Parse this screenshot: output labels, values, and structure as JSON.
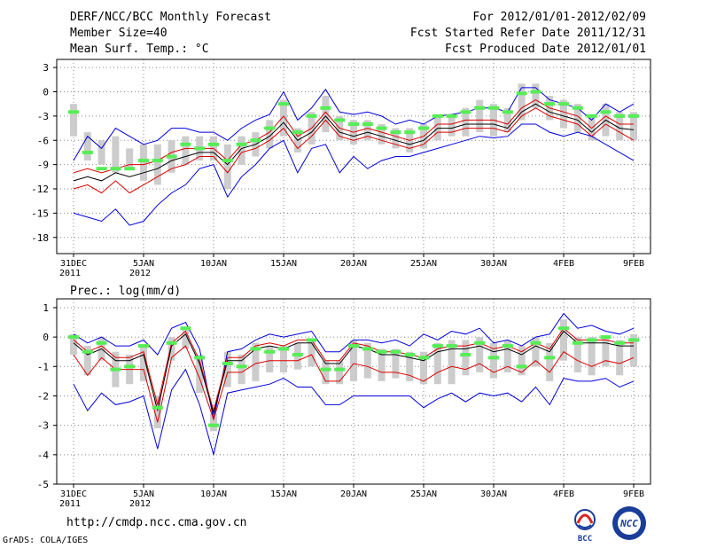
{
  "header": {
    "title": "DERF/NCC/BCC Monthly Forecast",
    "member_size": "Member Size=40",
    "variable": "Mean Surf. Temp.: °C",
    "forecast_for": "For 2012/01/01-2012/02/09",
    "started": "Fcst Started Refer Date 2011/12/31",
    "produced": "Fcst Produced Date 2012/01/01"
  },
  "footer": {
    "url": "http://cmdp.ncc.cma.gov.cn",
    "grads": "GrADS: COLA/IGES",
    "logo_bcc": "BCC",
    "logo_ncc": "NCC"
  },
  "colors": {
    "envelope": "#0000dd",
    "spread": "#dd0000",
    "mean": "#000000",
    "member": "#55ee55",
    "box": "#cccccc",
    "grid": "#888888"
  },
  "chart_data": [
    {
      "type": "line",
      "title": "Mean Surf. Temp.: °C",
      "ylim": [
        -20,
        4
      ],
      "yticks": [
        3,
        0,
        -3,
        -6,
        -9,
        -12,
        -15,
        -18
      ],
      "xlim": [
        0,
        40
      ],
      "xtick_pos": [
        0,
        5,
        10,
        15,
        20,
        25,
        30,
        35,
        40
      ],
      "xtick_labels": [
        "31DEC",
        "5JAN",
        "10JAN",
        "15JAN",
        "20JAN",
        "25JAN",
        "30JAN",
        "4FEB",
        "9FEB"
      ],
      "xtick_sublabels": [
        "2011",
        "2012",
        "",
        "",
        "",
        "",
        "",
        "",
        ""
      ],
      "x": [
        0,
        1,
        2,
        3,
        4,
        5,
        6,
        7,
        8,
        9,
        10,
        11,
        12,
        13,
        14,
        15,
        16,
        17,
        18,
        19,
        20,
        21,
        22,
        23,
        24,
        25,
        26,
        27,
        28,
        29,
        30,
        31,
        32,
        33,
        34,
        35,
        36,
        37,
        38,
        39,
        40
      ],
      "series": [
        {
          "name": "Max",
          "values": [
            -8.5,
            -5.5,
            -7,
            -4.5,
            -5.5,
            -6.5,
            -6,
            -4.5,
            -4.5,
            -5,
            -5,
            -6,
            -4.5,
            -3.5,
            -2.8,
            0,
            -3.5,
            -2,
            0.3,
            -2.5,
            -2.8,
            -2.5,
            -3,
            -4,
            -3.5,
            -4,
            -3,
            -2.8,
            -2.5,
            -2,
            -2,
            -2.5,
            0.5,
            0.5,
            -1,
            -1.5,
            -2,
            -3.5,
            -1.5,
            -2.5,
            -1.5
          ]
        },
        {
          "name": "Spread+",
          "values": [
            -10,
            -9.5,
            -10,
            -9.5,
            -9,
            -9,
            -8.5,
            -7.5,
            -7,
            -7,
            -7,
            -8.5,
            -6.5,
            -6,
            -5,
            -3,
            -5.5,
            -4.5,
            -2.5,
            -4.5,
            -5,
            -4.5,
            -5,
            -5.5,
            -6,
            -5.5,
            -4,
            -4,
            -3.5,
            -3.5,
            -3.5,
            -4,
            -2,
            -1,
            -2,
            -2.5,
            -3,
            -4.5,
            -3,
            -4,
            -4
          ]
        },
        {
          "name": "Mean",
          "values": [
            -11,
            -10.5,
            -11,
            -10,
            -10.5,
            -10,
            -9.5,
            -8.5,
            -8,
            -7.5,
            -7.5,
            -9,
            -7,
            -6.5,
            -5.5,
            -3.8,
            -6,
            -5,
            -3,
            -5,
            -5.5,
            -5,
            -5.5,
            -6,
            -6.5,
            -6,
            -4.5,
            -4.5,
            -4,
            -4,
            -4,
            -4.5,
            -2.5,
            -1.5,
            -2.5,
            -3,
            -3.5,
            -5,
            -3.5,
            -4.5,
            -4.7
          ]
        },
        {
          "name": "Spread-",
          "values": [
            -12,
            -11.5,
            -12.5,
            -11,
            -12.5,
            -11.5,
            -10.5,
            -9.5,
            -9,
            -8,
            -8,
            -10,
            -7.5,
            -7,
            -6,
            -4.5,
            -7,
            -5.5,
            -3.5,
            -5.5,
            -6,
            -5.5,
            -6,
            -6.5,
            -7,
            -6.5,
            -5,
            -5,
            -4.5,
            -4.5,
            -4.5,
            -5,
            -3,
            -2,
            -3,
            -3.5,
            -4,
            -5.5,
            -4,
            -5,
            -6
          ]
        },
        {
          "name": "Min",
          "values": [
            -15,
            -15.5,
            -16,
            -14.5,
            -16.5,
            -16,
            -14,
            -12.5,
            -11.5,
            -9.5,
            -9,
            -13,
            -10.5,
            -9,
            -7,
            -6,
            -10,
            -7,
            -6.5,
            -10,
            -8,
            -9.5,
            -8.5,
            -8,
            -8,
            -7.5,
            -7,
            -6.5,
            -6,
            -5.5,
            -5.7,
            -5.5,
            -4,
            -4,
            -5,
            -5.5,
            -5,
            -5.5,
            -6.5,
            -7.5,
            -8.5
          ]
        },
        {
          "name": "Member",
          "values": [
            -2.5,
            -7.5,
            -9.5,
            -9.5,
            -9.5,
            -8.5,
            -8.5,
            -8,
            -6.5,
            -7,
            -6.5,
            -8.5,
            -6.5,
            -6,
            -4.5,
            -1.5,
            -5,
            -3,
            -2,
            -3.5,
            -4,
            -4,
            -4.5,
            -5,
            -5,
            -4.5,
            -3,
            -3,
            -2.5,
            -2,
            -2,
            -2.5,
            -0.2,
            0,
            -1.5,
            -1.5,
            -2,
            -3,
            -2.5,
            -3,
            -3
          ]
        }
      ],
      "boxes": [
        [
          -1.5,
          -5.5
        ],
        [
          -5,
          -8.5
        ],
        [
          -6,
          -9
        ],
        [
          -5.5,
          -10
        ],
        [
          -7,
          -9.5
        ],
        [
          -6.5,
          -11
        ],
        [
          -6.5,
          -11.5
        ],
        [
          -6,
          -10
        ],
        [
          -5.5,
          -9
        ],
        [
          -5.5,
          -8.5
        ],
        [
          -5.5,
          -8.5
        ],
        [
          -6.5,
          -12
        ],
        [
          -5.5,
          -9
        ],
        [
          -5,
          -8
        ],
        [
          -3.5,
          -7
        ],
        [
          -1,
          -5.5
        ],
        [
          -4.5,
          -7.5
        ],
        [
          -2.5,
          -6.5
        ],
        [
          -0.5,
          -5
        ],
        [
          -3,
          -6
        ],
        [
          -3.5,
          -6.5
        ],
        [
          -3.5,
          -6
        ],
        [
          -4,
          -6.5
        ],
        [
          -4.5,
          -7
        ],
        [
          -4.5,
          -7.5
        ],
        [
          -4,
          -7
        ],
        [
          -3,
          -6
        ],
        [
          -3,
          -5.5
        ],
        [
          -2,
          -5.5
        ],
        [
          -1,
          -5
        ],
        [
          -1.5,
          -5.5
        ],
        [
          -2,
          -5
        ],
        [
          1,
          -3.5
        ],
        [
          1,
          -2
        ],
        [
          -0.5,
          -3.5
        ],
        [
          -1,
          -4.5
        ],
        [
          -1.5,
          -5
        ],
        [
          -3,
          -6
        ],
        [
          -1.5,
          -5.5
        ],
        [
          -2.5,
          -6
        ],
        [
          -2.5,
          -6
        ]
      ]
    },
    {
      "type": "line",
      "title": "Prec.: log(mm/d)",
      "ylim": [
        -5,
        1.3
      ],
      "yticks": [
        1,
        0,
        -1,
        -2,
        -3,
        -4,
        -5
      ],
      "xlim": [
        0,
        40
      ],
      "xtick_pos": [
        0,
        5,
        10,
        15,
        20,
        25,
        30,
        35,
        40
      ],
      "xtick_labels": [
        "31DEC",
        "5JAN",
        "10JAN",
        "15JAN",
        "20JAN",
        "25JAN",
        "30JAN",
        "4FEB",
        "9FEB"
      ],
      "xtick_sublabels": [
        "2011",
        "2012",
        "",
        "",
        "",
        "",
        "",
        "",
        ""
      ],
      "x": [
        0,
        1,
        2,
        3,
        4,
        5,
        6,
        7,
        8,
        9,
        10,
        11,
        12,
        13,
        14,
        15,
        16,
        17,
        18,
        19,
        20,
        21,
        22,
        23,
        24,
        25,
        26,
        27,
        28,
        29,
        30,
        31,
        32,
        33,
        34,
        35,
        36,
        37,
        38,
        39,
        40
      ],
      "series": [
        {
          "name": "Max",
          "values": [
            0.1,
            -0.2,
            0,
            -0.3,
            -0.3,
            -0.1,
            -0.6,
            0.3,
            0.5,
            -0.4,
            -2.8,
            -0.5,
            -0.4,
            -0.1,
            0.1,
            0,
            0.1,
            0.2,
            -0.5,
            -0.5,
            -0.1,
            -0.1,
            -0.2,
            -0.1,
            -0.3,
            0.1,
            -0.1,
            0.2,
            0.1,
            0.3,
            -0.2,
            -0.1,
            -0.3,
            0,
            0.1,
            0.8,
            0.3,
            0.4,
            0.2,
            0.1,
            0.3
          ]
        },
        {
          "name": "Spread+",
          "values": [
            -0.1,
            -0.5,
            -0.3,
            -0.7,
            -0.7,
            -0.5,
            -2.3,
            -0.2,
            0.2,
            -0.8,
            -2.5,
            -0.7,
            -0.7,
            -0.3,
            -0.2,
            -0.3,
            -0.1,
            -0.1,
            -0.8,
            -0.8,
            -0.2,
            -0.3,
            -0.5,
            -0.5,
            -0.6,
            -0.7,
            -0.4,
            -0.3,
            -0.3,
            -0.2,
            -0.4,
            -0.3,
            -0.5,
            -0.2,
            -0.4,
            0.3,
            -0.1,
            -0.1,
            -0.1,
            -0.2,
            -0.2
          ]
        },
        {
          "name": "Mean",
          "values": [
            -0.2,
            -0.6,
            -0.4,
            -0.8,
            -0.8,
            -0.6,
            -2.5,
            -0.3,
            0.1,
            -0.9,
            -2.6,
            -0.8,
            -0.8,
            -0.4,
            -0.3,
            -0.4,
            -0.2,
            -0.2,
            -0.9,
            -0.9,
            -0.3,
            -0.4,
            -0.6,
            -0.6,
            -0.7,
            -0.8,
            -0.5,
            -0.4,
            -0.4,
            -0.3,
            -0.5,
            -0.4,
            -0.6,
            -0.3,
            -0.5,
            0.2,
            -0.2,
            -0.2,
            -0.2,
            -0.3,
            -0.3
          ]
        },
        {
          "name": "Spread-",
          "values": [
            -0.6,
            -1.3,
            -0.7,
            -1.1,
            -1.1,
            -1.1,
            -2.9,
            -0.7,
            -0.3,
            -1.4,
            -2.8,
            -1.2,
            -1.2,
            -0.9,
            -0.8,
            -0.8,
            -0.8,
            -0.6,
            -1.5,
            -1.5,
            -0.9,
            -1,
            -1.2,
            -1.2,
            -1.3,
            -1.5,
            -1.2,
            -1,
            -1.1,
            -0.9,
            -1.2,
            -1,
            -1.2,
            -0.8,
            -1.2,
            -0.5,
            -0.8,
            -1,
            -0.8,
            -0.9,
            -0.7
          ]
        },
        {
          "name": "Min",
          "values": [
            -1.6,
            -2.5,
            -1.9,
            -2.3,
            -2.2,
            -2,
            -3.8,
            -1.8,
            -1.1,
            -2.3,
            -4,
            -1.9,
            -1.8,
            -1.7,
            -1.6,
            -1.4,
            -1.7,
            -1.7,
            -2.3,
            -2.3,
            -2,
            -2,
            -2,
            -2,
            -2,
            -2.4,
            -2.1,
            -1.9,
            -2.2,
            -1.9,
            -2,
            -1.9,
            -2.2,
            -1.7,
            -2.3,
            -1.4,
            -1.5,
            -1.5,
            -1.4,
            -1.7,
            -1.5
          ]
        },
        {
          "name": "Member",
          "values": [
            0,
            -0.5,
            -0.2,
            -1.1,
            -1,
            -0.3,
            -2.4,
            -0.2,
            0.3,
            -0.7,
            -3,
            -0.9,
            -1,
            -0.4,
            -0.5,
            -0.4,
            -0.6,
            -0.1,
            -1.1,
            -1.1,
            -0.3,
            -0.4,
            -0.5,
            -0.5,
            -0.6,
            -0.7,
            -0.3,
            -0.3,
            -0.6,
            -0.2,
            -0.7,
            -0.3,
            -1,
            -0.2,
            -0.7,
            0.3,
            -0.2,
            -0.1,
            0,
            -0.2,
            -0.1
          ]
        }
      ],
      "boxes": [
        [
          0.1,
          -0.6
        ],
        [
          -0.3,
          -1.3
        ],
        [
          0,
          -0.8
        ],
        [
          -0.5,
          -1.7
        ],
        [
          -0.6,
          -1.6
        ],
        [
          -0.3,
          -1.5
        ],
        [
          -2,
          -3.1
        ],
        [
          0,
          -0.8
        ],
        [
          0.3,
          -0.4
        ],
        [
          -0.6,
          -1.9
        ],
        [
          -2.6,
          -3.2
        ],
        [
          -0.5,
          -1.7
        ],
        [
          -0.6,
          -1.6
        ],
        [
          -0.2,
          -1.5
        ],
        [
          -0.3,
          -1.2
        ],
        [
          -0.3,
          -1.2
        ],
        [
          -0.2,
          -1.1
        ],
        [
          -0.1,
          -1
        ],
        [
          -0.8,
          -1.6
        ],
        [
          -0.8,
          -1.6
        ],
        [
          -0.1,
          -1.5
        ],
        [
          -0.2,
          -1.4
        ],
        [
          -0.4,
          -1.5
        ],
        [
          -0.4,
          -1.4
        ],
        [
          -0.5,
          -1.5
        ],
        [
          -0.5,
          -1.6
        ],
        [
          -0.2,
          -1.6
        ],
        [
          -0.1,
          -1.6
        ],
        [
          -0.1,
          -1.3
        ],
        [
          0,
          -1.2
        ],
        [
          -0.2,
          -1.4
        ],
        [
          -0.1,
          -1.2
        ],
        [
          -0.3,
          -1.3
        ],
        [
          0,
          -1
        ],
        [
          -0.2,
          -1.5
        ],
        [
          0.6,
          -0.8
        ],
        [
          0,
          -1.2
        ],
        [
          0,
          -1.3
        ],
        [
          0,
          -1
        ],
        [
          -0.1,
          -1.3
        ],
        [
          0.1,
          -1
        ]
      ]
    }
  ]
}
